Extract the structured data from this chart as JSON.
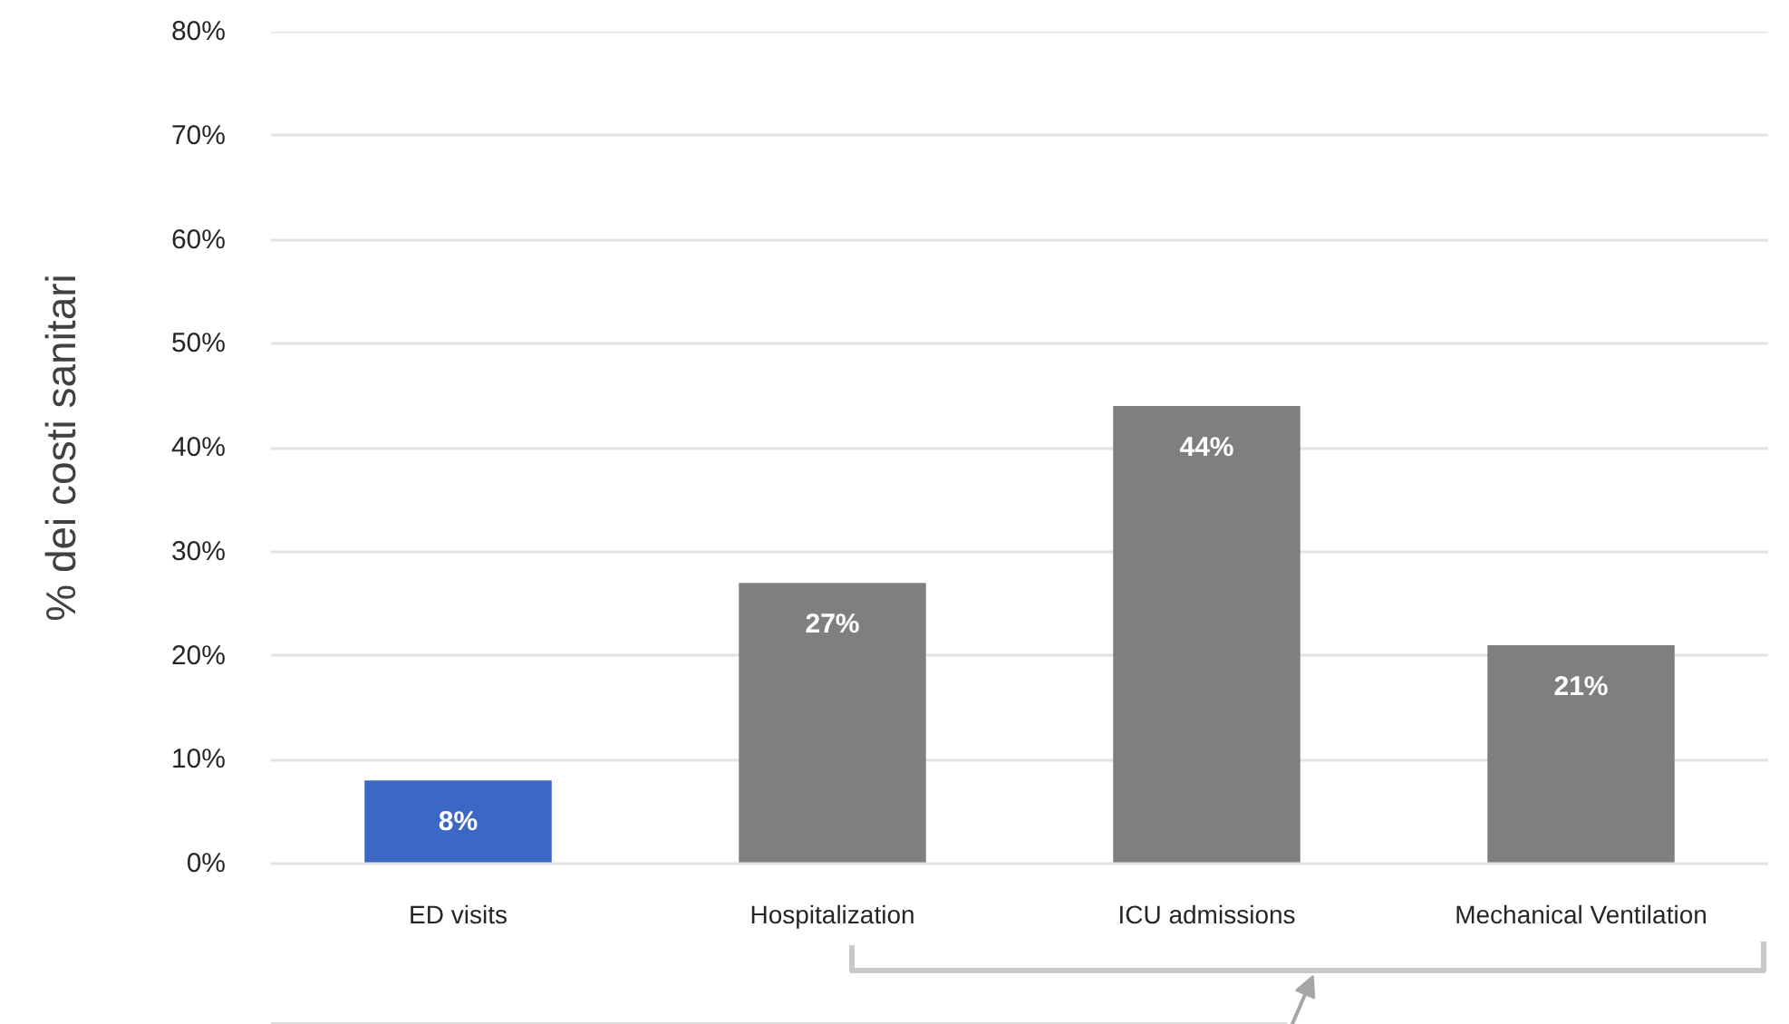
{
  "chart_data": {
    "type": "bar",
    "ylabel": "% dei costi sanitari",
    "categories": [
      "ED visits",
      "Hospitalization",
      "ICU admissions",
      "Mechanical Ventilation"
    ],
    "values": [
      8,
      27,
      44,
      21
    ],
    "colors": [
      "#3a68c4",
      "#7f7f7f",
      "#7f7f7f",
      "#7f7f7f"
    ],
    "value_labels": [
      "8%",
      "27%",
      "44%",
      "21%"
    ],
    "ylim": [
      0,
      80
    ],
    "yticks": [
      {
        "value": 0,
        "label": "0%"
      },
      {
        "value": 10,
        "label": "10%"
      },
      {
        "value": 20,
        "label": "20%"
      },
      {
        "value": 30,
        "label": "30%"
      },
      {
        "value": 40,
        "label": "40%"
      },
      {
        "value": 50,
        "label": "50%"
      },
      {
        "value": 60,
        "label": "60%"
      },
      {
        "value": 70,
        "label": "70%"
      },
      {
        "value": 80,
        "label": "80%"
      }
    ],
    "grid": "y"
  }
}
